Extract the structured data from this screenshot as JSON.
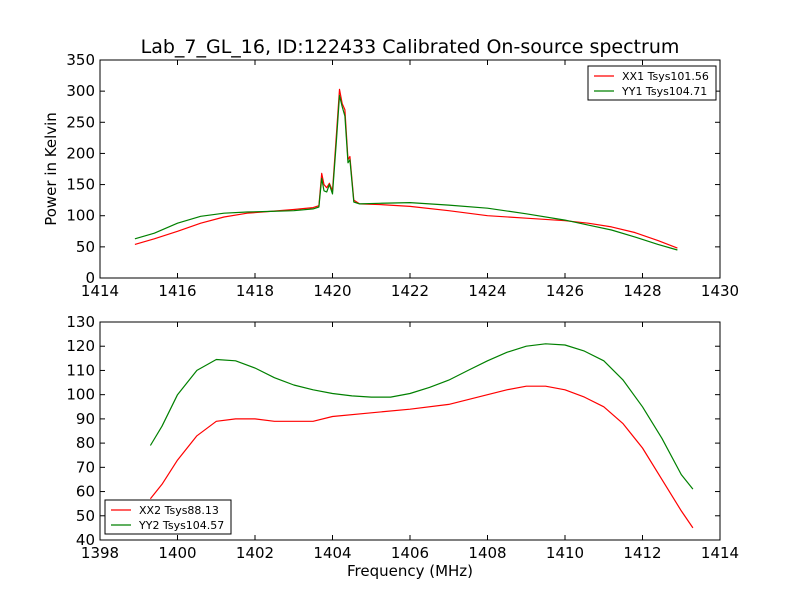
{
  "figure_title": "Lab_7_GL_16, ID:122433 Calibrated On-source spectrum",
  "colors": {
    "red": "#ff0000",
    "green": "#008000"
  },
  "chart_data": [
    {
      "type": "line",
      "title": "Lab_7_GL_16, ID:122433 Calibrated On-source spectrum",
      "xlabel": "",
      "ylabel": "Power in Kelvin",
      "xlim": [
        1414,
        1430
      ],
      "ylim": [
        0,
        350
      ],
      "xticks": [
        1414,
        1416,
        1418,
        1420,
        1422,
        1424,
        1426,
        1428,
        1430
      ],
      "yticks": [
        0,
        50,
        100,
        150,
        200,
        250,
        300,
        350
      ],
      "grid": false,
      "legend_loc": "upper right",
      "series": [
        {
          "name": "XX1 Tsys101.56",
          "color": "#ff0000",
          "points": [
            [
              1414.9,
              54
            ],
            [
              1415.4,
              63
            ],
            [
              1416,
              75
            ],
            [
              1416.6,
              88
            ],
            [
              1417.2,
              98
            ],
            [
              1417.8,
              104
            ],
            [
              1418.4,
              107
            ],
            [
              1419,
              110
            ],
            [
              1419.5,
              113
            ],
            [
              1419.65,
              116
            ],
            [
              1419.72,
              168
            ],
            [
              1419.78,
              150
            ],
            [
              1419.85,
              145
            ],
            [
              1419.92,
              152
            ],
            [
              1420.0,
              140
            ],
            [
              1420.1,
              230
            ],
            [
              1420.18,
              303
            ],
            [
              1420.25,
              280
            ],
            [
              1420.32,
              270
            ],
            [
              1420.4,
              190
            ],
            [
              1420.45,
              195
            ],
            [
              1420.55,
              125
            ],
            [
              1420.7,
              119
            ],
            [
              1421.2,
              118
            ],
            [
              1422,
              115
            ],
            [
              1423,
              108
            ],
            [
              1424,
              100
            ],
            [
              1425,
              96
            ],
            [
              1426,
              92
            ],
            [
              1426.6,
              88
            ],
            [
              1427.2,
              82
            ],
            [
              1427.8,
              73
            ],
            [
              1428.4,
              60
            ],
            [
              1428.9,
              48
            ]
          ]
        },
        {
          "name": "YY1 Tsys104.71",
          "color": "#008000",
          "points": [
            [
              1414.9,
              63
            ],
            [
              1415.4,
              72
            ],
            [
              1416,
              88
            ],
            [
              1416.6,
              99
            ],
            [
              1417.2,
              104
            ],
            [
              1417.8,
              106
            ],
            [
              1418.4,
              107
            ],
            [
              1419,
              108
            ],
            [
              1419.5,
              111
            ],
            [
              1419.65,
              114
            ],
            [
              1419.72,
              160
            ],
            [
              1419.78,
              140
            ],
            [
              1419.85,
              138
            ],
            [
              1419.92,
              150
            ],
            [
              1420.0,
              135
            ],
            [
              1420.1,
              220
            ],
            [
              1420.18,
              293
            ],
            [
              1420.25,
              275
            ],
            [
              1420.32,
              260
            ],
            [
              1420.4,
              185
            ],
            [
              1420.45,
              190
            ],
            [
              1420.55,
              122
            ],
            [
              1420.7,
              119
            ],
            [
              1421.2,
              120
            ],
            [
              1422,
              121
            ],
            [
              1423,
              117
            ],
            [
              1424,
              112
            ],
            [
              1425,
              103
            ],
            [
              1426,
              93
            ],
            [
              1426.6,
              85
            ],
            [
              1427.2,
              77
            ],
            [
              1427.8,
              66
            ],
            [
              1428.4,
              54
            ],
            [
              1428.9,
              45
            ]
          ]
        }
      ]
    },
    {
      "type": "line",
      "title": "",
      "xlabel": "Frequency (MHz)",
      "ylabel": "",
      "xlim": [
        1398,
        1414
      ],
      "ylim": [
        40,
        130
      ],
      "xticks": [
        1398,
        1400,
        1402,
        1404,
        1406,
        1408,
        1410,
        1412,
        1414
      ],
      "yticks": [
        40,
        50,
        60,
        70,
        80,
        90,
        100,
        110,
        120,
        130
      ],
      "grid": false,
      "legend_loc": "lower left",
      "series": [
        {
          "name": "XX2 Tsys88.13",
          "color": "#ff0000",
          "points": [
            [
              1399.3,
              57
            ],
            [
              1399.6,
              63
            ],
            [
              1400,
              73
            ],
            [
              1400.5,
              83
            ],
            [
              1401,
              89
            ],
            [
              1401.5,
              90
            ],
            [
              1402,
              90
            ],
            [
              1402.5,
              89
            ],
            [
              1403,
              89
            ],
            [
              1403.5,
              89
            ],
            [
              1404,
              91
            ],
            [
              1405,
              92.5
            ],
            [
              1406,
              94
            ],
            [
              1407,
              96
            ],
            [
              1408,
              100
            ],
            [
              1408.5,
              102
            ],
            [
              1409,
              103.5
            ],
            [
              1409.5,
              103.5
            ],
            [
              1410,
              102
            ],
            [
              1410.5,
              99
            ],
            [
              1411,
              95
            ],
            [
              1411.5,
              88
            ],
            [
              1412,
              78
            ],
            [
              1412.5,
              65
            ],
            [
              1413,
              52
            ],
            [
              1413.3,
              45
            ]
          ]
        },
        {
          "name": "YY2 Tsys104.57",
          "color": "#008000",
          "points": [
            [
              1399.3,
              79
            ],
            [
              1399.6,
              87
            ],
            [
              1400,
              100
            ],
            [
              1400.5,
              110
            ],
            [
              1401,
              114.5
            ],
            [
              1401.5,
              114
            ],
            [
              1402,
              111
            ],
            [
              1402.5,
              107
            ],
            [
              1403,
              104
            ],
            [
              1403.5,
              102
            ],
            [
              1404,
              100.5
            ],
            [
              1404.5,
              99.5
            ],
            [
              1405,
              99
            ],
            [
              1405.5,
              99
            ],
            [
              1406,
              100.5
            ],
            [
              1406.5,
              103
            ],
            [
              1407,
              106
            ],
            [
              1407.5,
              110
            ],
            [
              1408,
              114
            ],
            [
              1408.5,
              117.5
            ],
            [
              1409,
              120
            ],
            [
              1409.5,
              121
            ],
            [
              1410,
              120.5
            ],
            [
              1410.5,
              118
            ],
            [
              1411,
              114
            ],
            [
              1411.5,
              106
            ],
            [
              1412,
              95
            ],
            [
              1412.5,
              82
            ],
            [
              1413,
              67
            ],
            [
              1413.3,
              61
            ]
          ]
        }
      ]
    }
  ]
}
